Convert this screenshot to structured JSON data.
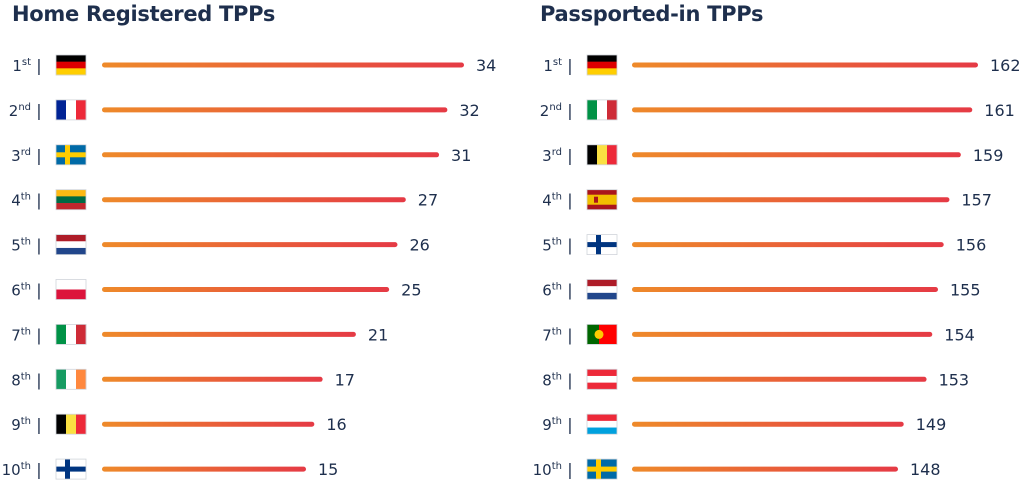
{
  "colors": {
    "text": "#1e2f4d",
    "bar_start": "#ee8a2a",
    "bar_end": "#e53a45"
  },
  "chart_data": [
    {
      "type": "bar",
      "orientation": "horizontal",
      "title": "Home Registered TPPs",
      "rank_labels": [
        {
          "num": "1",
          "suffix": "st"
        },
        {
          "num": "2",
          "suffix": "nd"
        },
        {
          "num": "3",
          "suffix": "rd"
        },
        {
          "num": "4",
          "suffix": "th"
        },
        {
          "num": "5",
          "suffix": "th"
        },
        {
          "num": "6",
          "suffix": "th"
        },
        {
          "num": "7",
          "suffix": "th"
        },
        {
          "num": "8",
          "suffix": "th"
        },
        {
          "num": "9",
          "suffix": "th"
        },
        {
          "num": "10",
          "suffix": "th"
        }
      ],
      "separator": "|",
      "flags": [
        "germany-flag",
        "france-flag",
        "sweden-flag",
        "lithuania-flag",
        "netherlands-flag",
        "poland-flag",
        "italy-flag",
        "ireland-flag",
        "belgium-flag",
        "finland-flag"
      ],
      "values": [
        34,
        32,
        31,
        27,
        26,
        25,
        21,
        17,
        16,
        15
      ]
    },
    {
      "type": "bar",
      "orientation": "horizontal",
      "title": "Passported-in TPPs",
      "rank_labels": [
        {
          "num": "1",
          "suffix": "st"
        },
        {
          "num": "2",
          "suffix": "nd"
        },
        {
          "num": "3",
          "suffix": "rd"
        },
        {
          "num": "4",
          "suffix": "th"
        },
        {
          "num": "5",
          "suffix": "th"
        },
        {
          "num": "6",
          "suffix": "th"
        },
        {
          "num": "7",
          "suffix": "th"
        },
        {
          "num": "8",
          "suffix": "th"
        },
        {
          "num": "9",
          "suffix": "th"
        },
        {
          "num": "10",
          "suffix": "th"
        }
      ],
      "separator": "|",
      "flags": [
        "germany-flag",
        "italy-flag",
        "belgium-flag",
        "spain-flag",
        "finland-flag",
        "netherlands-flag",
        "portugal-flag",
        "austria-flag",
        "luxembourg-flag",
        "sweden-flag"
      ],
      "values": [
        162,
        161,
        159,
        157,
        156,
        155,
        154,
        153,
        149,
        148
      ]
    }
  ]
}
